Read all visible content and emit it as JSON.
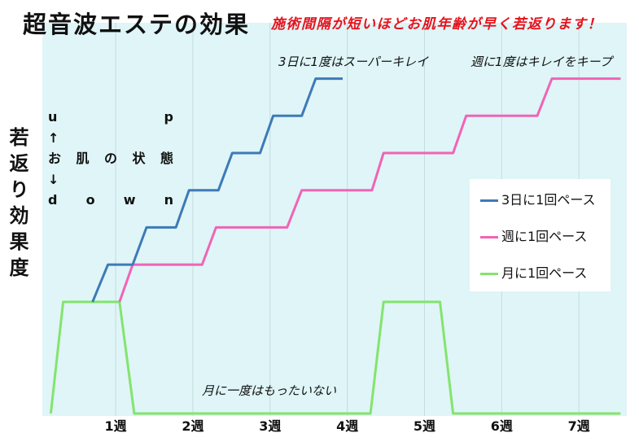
{
  "chart_data": {
    "type": "line",
    "title": "超音波エステの効果",
    "subtitle": "施術間隔が短いほどお肌年齢が早く若返ります！",
    "ylabel": "若返り効果度",
    "axis_note": [
      "u p",
      "↑",
      "お 肌 の 状 態",
      "↓",
      "d o w n"
    ],
    "xticks": [
      "1週",
      "2週",
      "3週",
      "4週",
      "5週",
      "6週",
      "7週"
    ],
    "xtick_values": [
      1,
      2,
      3,
      4,
      5,
      6,
      7
    ],
    "xlim": [
      0.05,
      7.62
    ],
    "ylim": [
      0,
      10.5
    ],
    "grid": true,
    "legend": "right",
    "plot_background": "#dff5f7",
    "series": [
      {
        "name": "3日に1回ペース",
        "color": "#3d7ab8",
        "x": [
          0.7,
          0.9,
          1.22,
          1.4,
          1.78,
          1.95,
          2.33,
          2.51,
          2.87,
          3.04,
          3.41,
          3.59,
          3.94
        ],
        "y": [
          3,
          4,
          4,
          5,
          5,
          6,
          6,
          7,
          7,
          8,
          8,
          9,
          9
        ]
      },
      {
        "name": "週に1回ペース",
        "color": "#f064b6",
        "x": [
          1.05,
          1.22,
          2.12,
          2.3,
          3.22,
          3.41,
          4.32,
          4.47,
          5.37,
          5.54,
          6.46,
          6.65,
          7.54
        ],
        "y": [
          3,
          4,
          4,
          5,
          5,
          6,
          6,
          7,
          7,
          8,
          8,
          9,
          9
        ]
      },
      {
        "name": "月に1回ペース",
        "color": "#84e46e",
        "x": [
          0.16,
          0.32,
          1.05,
          1.24,
          4.3,
          4.47,
          5.2,
          5.37,
          7.54
        ],
        "y": [
          0,
          3,
          3,
          0,
          0,
          3,
          3,
          0,
          0
        ]
      }
    ],
    "annotations": [
      "3日に1度はスーパーキレイ",
      "週に1度はキレイをキープ",
      "月に一度はもったいない"
    ]
  }
}
